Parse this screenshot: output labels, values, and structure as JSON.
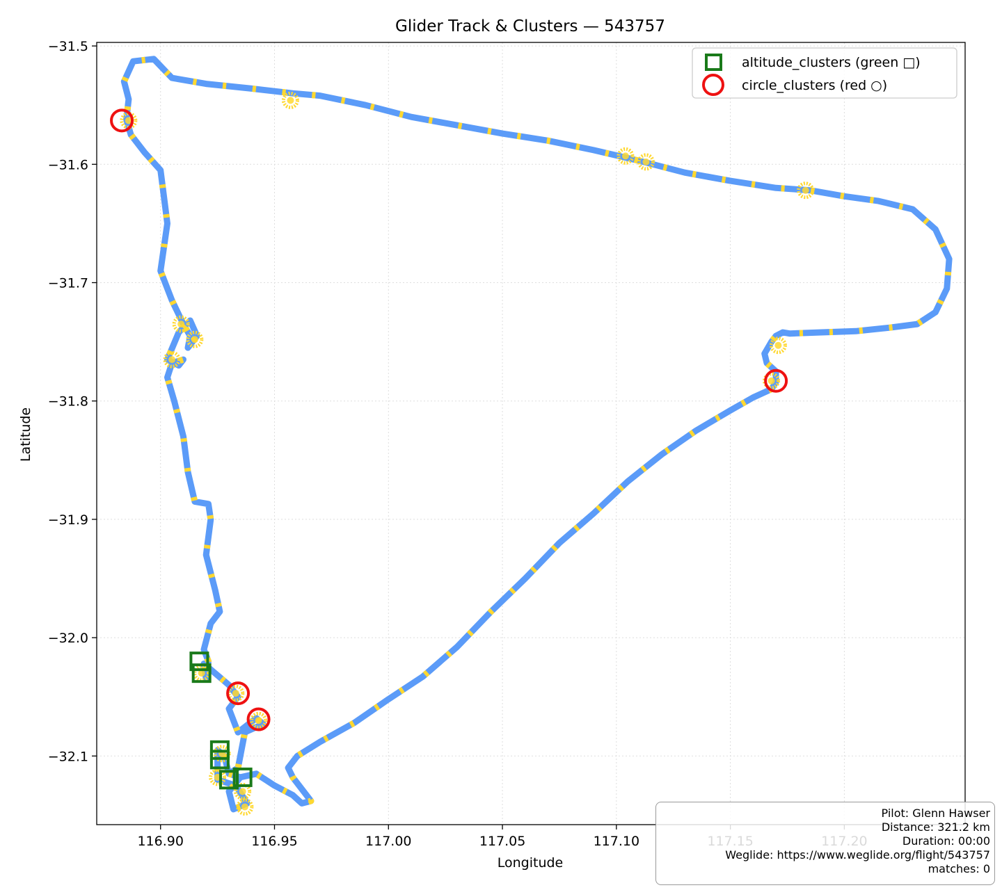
{
  "chart_data": {
    "type": "scatter",
    "title": "Glider Track & Clusters — 543757",
    "xlabel": "Longitude",
    "ylabel": "Latitude",
    "xlim": [
      116.872,
      117.253
    ],
    "ylim": [
      -32.158,
      -31.497
    ],
    "xticks": [
      116.9,
      116.95,
      117.0,
      117.05,
      117.1,
      117.15,
      117.2
    ],
    "xtick_labels": [
      "116.90",
      "116.95",
      "117.00",
      "117.05",
      "117.10",
      "117.15",
      "117.20"
    ],
    "yticks": [
      -31.5,
      -31.6,
      -31.7,
      -31.8,
      -31.9,
      -32.0,
      -32.1
    ],
    "ytick_labels": [
      "−31.5",
      "−31.6",
      "−31.7",
      "−31.8",
      "−31.9",
      "−32.0",
      "−32.1"
    ],
    "grid": true,
    "legend_placement": "upper right",
    "colors": {
      "track": "#5b9bf8",
      "track_highlight": "#ffd830",
      "altitude_clusters": "#1a7a1a",
      "circle_clusters": "#ee1111"
    },
    "track": {
      "lon": [
        116.93,
        116.935,
        116.942,
        116.95,
        116.958,
        116.962,
        116.966,
        116.964,
        116.958,
        116.956,
        116.96,
        116.97,
        116.985,
        117.0,
        117.015,
        117.03,
        117.045,
        117.06,
        117.075,
        117.09,
        117.105,
        117.12,
        117.135,
        117.15,
        117.16,
        117.168,
        117.17,
        117.17,
        117.166,
        117.165,
        117.168,
        117.17,
        117.173,
        117.176,
        117.19,
        117.205,
        117.22,
        117.232,
        117.24,
        117.245,
        117.246,
        117.24,
        117.23,
        117.215,
        117.2,
        117.185,
        117.17,
        117.15,
        117.13,
        117.11,
        117.09,
        117.07,
        117.05,
        117.03,
        117.01,
        116.99,
        116.97,
        116.958,
        116.94,
        116.92,
        116.905,
        116.897,
        116.888,
        116.884,
        116.886,
        116.885,
        116.887,
        116.893,
        116.9,
        116.903,
        116.9,
        116.905,
        116.91,
        116.913,
        116.912,
        116.916,
        116.913,
        116.908,
        116.903,
        116.908,
        116.91,
        116.905,
        116.903,
        116.906,
        116.91,
        116.912,
        116.915,
        116.921,
        116.922,
        116.92,
        116.924,
        116.926,
        116.922,
        116.919,
        116.921,
        116.92,
        116.919,
        116.93,
        116.934,
        116.93,
        116.934,
        116.942,
        116.945,
        116.937,
        116.934,
        116.93,
        116.928,
        116.925,
        116.925,
        116.933,
        116.938,
        116.932,
        116.93,
        116.935
      ],
      "lat": [
        -32.115,
        -32.118,
        -32.115,
        -32.125,
        -32.133,
        -32.14,
        -32.138,
        -32.133,
        -32.118,
        -32.11,
        -32.1,
        -32.088,
        -32.072,
        -32.052,
        -32.033,
        -32.008,
        -31.978,
        -31.95,
        -31.92,
        -31.895,
        -31.868,
        -31.845,
        -31.825,
        -31.808,
        -31.797,
        -31.79,
        -31.784,
        -31.775,
        -31.768,
        -31.76,
        -31.75,
        -31.745,
        -31.742,
        -31.743,
        -31.742,
        -31.741,
        -31.738,
        -31.735,
        -31.725,
        -31.705,
        -31.68,
        -31.655,
        -31.638,
        -31.631,
        -31.627,
        -31.622,
        -31.62,
        -31.614,
        -31.607,
        -31.597,
        -31.588,
        -31.58,
        -31.574,
        -31.567,
        -31.56,
        -31.55,
        -31.542,
        -31.54,
        -31.536,
        -31.532,
        -31.527,
        -31.511,
        -31.513,
        -31.53,
        -31.545,
        -31.562,
        -31.575,
        -31.59,
        -31.605,
        -31.65,
        -31.69,
        -31.715,
        -31.735,
        -31.745,
        -31.755,
        -31.745,
        -31.732,
        -31.742,
        -31.765,
        -31.77,
        -31.765,
        -31.768,
        -31.78,
        -31.8,
        -31.83,
        -31.86,
        -31.885,
        -31.887,
        -31.9,
        -31.93,
        -31.96,
        -31.978,
        -31.988,
        -32.01,
        -32.02,
        -32.035,
        -32.022,
        -32.04,
        -32.05,
        -32.06,
        -32.08,
        -32.068,
        -32.073,
        -32.08,
        -32.11,
        -32.115,
        -32.1,
        -32.095,
        -32.12,
        -32.125,
        -32.14,
        -32.145,
        -32.13,
        -32.118
      ]
    },
    "highlight_blobs": [
      [
        116.957,
        -31.546
      ],
      [
        117.113,
        -31.598
      ],
      [
        117.104,
        -31.593
      ],
      [
        117.183,
        -31.622
      ],
      [
        116.886,
        -31.563
      ],
      [
        116.909,
        -31.735
      ],
      [
        116.915,
        -31.748
      ],
      [
        116.905,
        -31.765
      ],
      [
        117.171,
        -31.753
      ],
      [
        117.168,
        -31.783
      ],
      [
        116.918,
        -32.03
      ],
      [
        116.933,
        -32.047
      ],
      [
        116.943,
        -32.07
      ],
      [
        116.927,
        -32.098
      ],
      [
        116.925,
        -32.118
      ],
      [
        116.936,
        -32.13
      ],
      [
        116.937,
        -32.143
      ]
    ],
    "series": [
      {
        "name": "altitude_clusters (green □)",
        "marker": "square",
        "lon": [
          116.917,
          116.918,
          116.926,
          116.926,
          116.93,
          116.936
        ],
        "lat": [
          -32.02,
          -32.03,
          -32.095,
          -32.103,
          -32.12,
          -32.118
        ]
      },
      {
        "name": "circle_clusters (red ○)",
        "marker": "circle",
        "lon": [
          116.883,
          116.934,
          116.943,
          117.17
        ],
        "lat": [
          -31.563,
          -32.047,
          -32.069,
          -31.783
        ]
      }
    ]
  },
  "info": {
    "pilot": "Pilot: Glenn Hawser",
    "distance": "Distance: 321.2 km",
    "duration": "Duration: 00:00",
    "weglide": "Weglide: https://www.weglide.org/flight/543757",
    "matches": "matches: 0"
  }
}
